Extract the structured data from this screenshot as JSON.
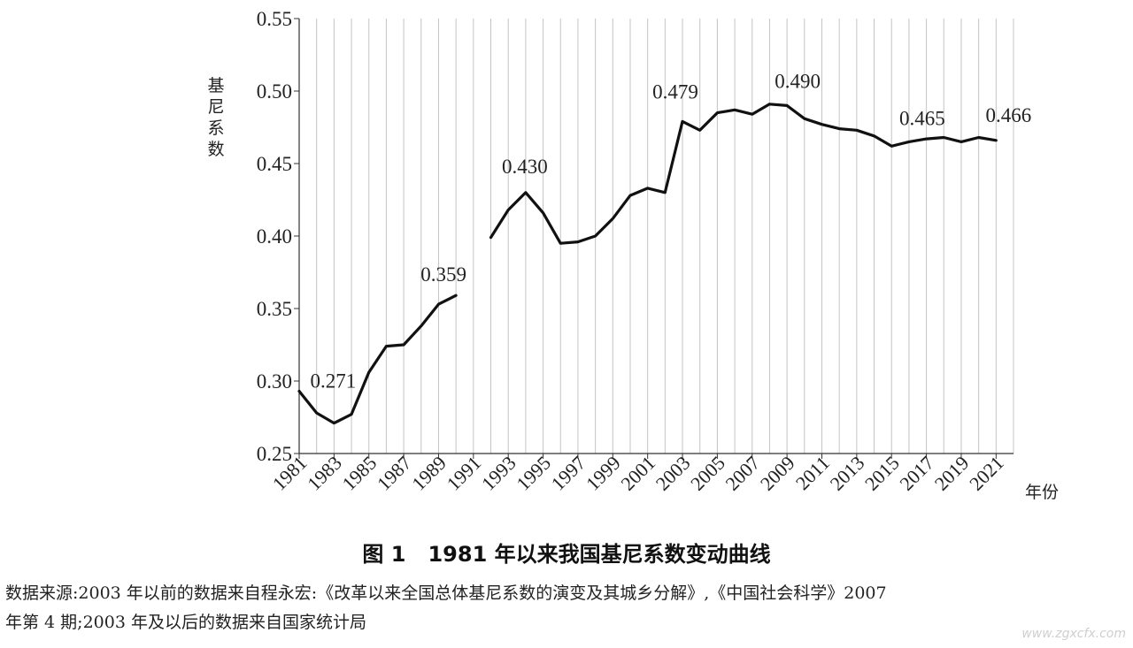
{
  "caption": {
    "figure": "图 1",
    "title": "1981 年以来我国基尼系数变动曲线"
  },
  "source_note": {
    "line1": "数据来源:2003 年以前的数据来自程永宏:《改革以来全国总体基尼系数的演变及其城乡分解》,《中国社会科学》2007",
    "line2": "年第 4 期;2003 年及以后的数据来自国家统计局"
  },
  "watermark": "www.zgxcfx.com",
  "chart_data": {
    "type": "line",
    "title": "",
    "xlabel": "年份",
    "ylabel": "基尼系数",
    "ylim": [
      0.25,
      0.55
    ],
    "yticks": [
      "0.25",
      "0.30",
      "0.35",
      "0.40",
      "0.45",
      "0.50",
      "0.55"
    ],
    "xlim": [
      1981,
      2022
    ],
    "xticks": [
      "1981",
      "1983",
      "1985",
      "1987",
      "1989",
      "1991",
      "1993",
      "1995",
      "1997",
      "1999",
      "2001",
      "2003",
      "2005",
      "2007",
      "2009",
      "2011",
      "2013",
      "2015",
      "2017",
      "2019",
      "2021"
    ],
    "grid": "vertical",
    "segments": [
      {
        "x": [
          1981,
          1982,
          1983,
          1984,
          1985,
          1986,
          1987,
          1988,
          1989,
          1990
        ],
        "y": [
          0.293,
          0.278,
          0.271,
          0.277,
          0.306,
          0.324,
          0.325,
          0.338,
          0.353,
          0.359
        ]
      },
      {
        "x": [
          1992,
          1993,
          1994,
          1995,
          1996,
          1997,
          1998,
          1999,
          2000,
          2001,
          2002,
          2003,
          2004,
          2005,
          2006,
          2007,
          2008,
          2009,
          2010,
          2011,
          2012,
          2013,
          2014,
          2015,
          2016,
          2017,
          2018,
          2019,
          2020,
          2021
        ],
        "y": [
          0.399,
          0.418,
          0.43,
          0.416,
          0.395,
          0.396,
          0.4,
          0.412,
          0.428,
          0.433,
          0.43,
          0.479,
          0.473,
          0.485,
          0.487,
          0.484,
          0.491,
          0.49,
          0.481,
          0.477,
          0.474,
          0.473,
          0.469,
          0.462,
          0.465,
          0.467,
          0.468,
          0.465,
          0.468,
          0.466
        ]
      }
    ],
    "annotations": [
      {
        "x": 1983,
        "y": 0.271,
        "text": "0.271"
      },
      {
        "x": 1990,
        "y": 0.359,
        "text": "0.359"
      },
      {
        "x": 1994,
        "y": 0.43,
        "text": "0.430"
      },
      {
        "x": 2003,
        "y": 0.479,
        "text": "0.479"
      },
      {
        "x": 2009,
        "y": 0.49,
        "text": "0.490"
      },
      {
        "x": 2016,
        "y": 0.465,
        "text": "0.465"
      },
      {
        "x": 2021,
        "y": 0.466,
        "text": "0.466"
      }
    ]
  }
}
